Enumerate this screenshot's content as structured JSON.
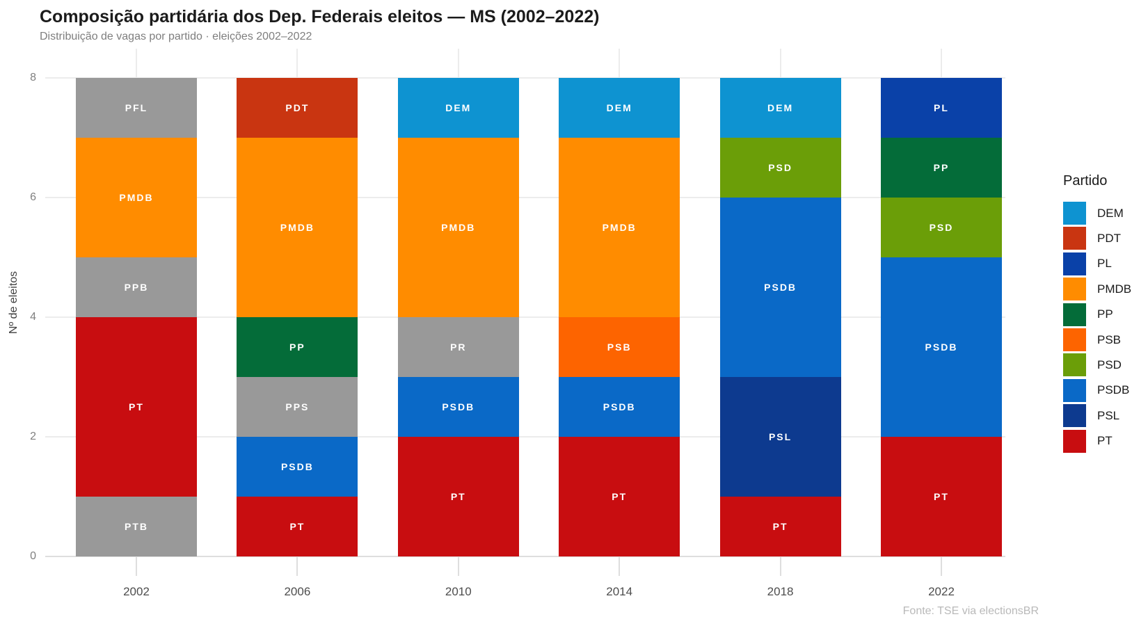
{
  "header": {
    "title": "Composição partidária dos Dep. Federais eleitos — MS (2002–2022)",
    "subtitle": "Distribuição de vagas por partido · eleições 2002–2022"
  },
  "footer": {
    "source": "Fonte: TSE via electionsBR"
  },
  "chart_data": {
    "type": "bar",
    "stacked": true,
    "title": "Composição partidária dos Dep. Federais eleitos — MS (2002–2022)",
    "subtitle": "Distribuição de vagas por partido · eleições 2002–2022",
    "xlabel": "",
    "ylabel": "Nº de eleitos",
    "ylim": [
      0,
      8
    ],
    "yticks": [
      0,
      2,
      4,
      6,
      8
    ],
    "grid": "major horizontal and vertical, light gray, white background",
    "legend_position": "right",
    "legend_title": "Partido",
    "legend_entries": [
      "DEM",
      "PDT",
      "PL",
      "PMDB",
      "PP",
      "PSB",
      "PSD",
      "PSDB",
      "PSL",
      "PT"
    ],
    "party_colors": {
      "DEM": "#0e93d1",
      "PDT": "#c93511",
      "PL": "#0a41a8",
      "PMDB": "#ff8c00",
      "PP": "#046c39",
      "PSB": "#fd6400",
      "PSD": "#6b9e08",
      "PSDB": "#0a69c7",
      "PSL": "#0d3a8f",
      "PT": "#c80d10",
      "PTB": "#999999",
      "PPB": "#999999",
      "PFL": "#999999",
      "PPS": "#999999",
      "PR": "#999999"
    },
    "categories": [
      "2002",
      "2006",
      "2010",
      "2014",
      "2018",
      "2022"
    ],
    "stacks_note": "segments listed bottom-to-top; seats = number of elected deputies",
    "stacks": [
      {
        "category": "2002",
        "segments": [
          {
            "party": "PTB",
            "seats": 1
          },
          {
            "party": "PT",
            "seats": 3
          },
          {
            "party": "PPB",
            "seats": 1
          },
          {
            "party": "PMDB",
            "seats": 2
          },
          {
            "party": "PFL",
            "seats": 1
          }
        ]
      },
      {
        "category": "2006",
        "segments": [
          {
            "party": "PT",
            "seats": 1
          },
          {
            "party": "PSDB",
            "seats": 1
          },
          {
            "party": "PPS",
            "seats": 1
          },
          {
            "party": "PP",
            "seats": 1
          },
          {
            "party": "PMDB",
            "seats": 3
          },
          {
            "party": "PDT",
            "seats": 1
          }
        ]
      },
      {
        "category": "2010",
        "segments": [
          {
            "party": "PT",
            "seats": 2
          },
          {
            "party": "PSDB",
            "seats": 1
          },
          {
            "party": "PR",
            "seats": 1
          },
          {
            "party": "PMDB",
            "seats": 3
          },
          {
            "party": "DEM",
            "seats": 1
          }
        ]
      },
      {
        "category": "2014",
        "segments": [
          {
            "party": "PT",
            "seats": 2
          },
          {
            "party": "PSDB",
            "seats": 1
          },
          {
            "party": "PSB",
            "seats": 1
          },
          {
            "party": "PMDB",
            "seats": 3
          },
          {
            "party": "DEM",
            "seats": 1
          }
        ]
      },
      {
        "category": "2018",
        "segments": [
          {
            "party": "PT",
            "seats": 1
          },
          {
            "party": "PSL",
            "seats": 2
          },
          {
            "party": "PSDB",
            "seats": 3
          },
          {
            "party": "PSD",
            "seats": 1
          },
          {
            "party": "DEM",
            "seats": 1
          }
        ]
      },
      {
        "category": "2022",
        "segments": [
          {
            "party": "PT",
            "seats": 2
          },
          {
            "party": "PSDB",
            "seats": 3
          },
          {
            "party": "PSD",
            "seats": 1
          },
          {
            "party": "PP",
            "seats": 1
          },
          {
            "party": "PL",
            "seats": 1
          }
        ]
      }
    ]
  }
}
